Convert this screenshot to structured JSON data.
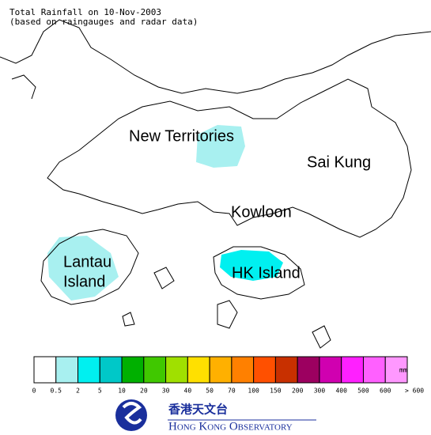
{
  "header": {
    "title": "Total Rainfall on 10-Nov-2003",
    "subtitle": "(based on raingauges and radar data)"
  },
  "places": [
    "New Territories",
    "Sai Kung",
    "Kowloon",
    "Lantau",
    "Island",
    "HK Island"
  ],
  "legend": {
    "labels": [
      "0",
      "0.5",
      "2",
      "5",
      "10",
      "20",
      "30",
      "40",
      "50",
      "70",
      "100",
      "150",
      "200",
      "300",
      "400",
      "500",
      "600",
      "> 600"
    ],
    "colors": [
      "#ffffff",
      "#a8f0f0",
      "#00f0f0",
      "#00c8c8",
      "#00b000",
      "#40c800",
      "#a0e000",
      "#ffe000",
      "#ffb000",
      "#ff8000",
      "#ff5000",
      "#c83000",
      "#9c0060",
      "#d000b0",
      "#ff20ff",
      "#ff60ff",
      "#ff98ff",
      "#ffd8ff"
    ],
    "unit": "mm"
  },
  "logo": {
    "chinese": "香港天文台",
    "english": "Hong Kong Observatory"
  }
}
